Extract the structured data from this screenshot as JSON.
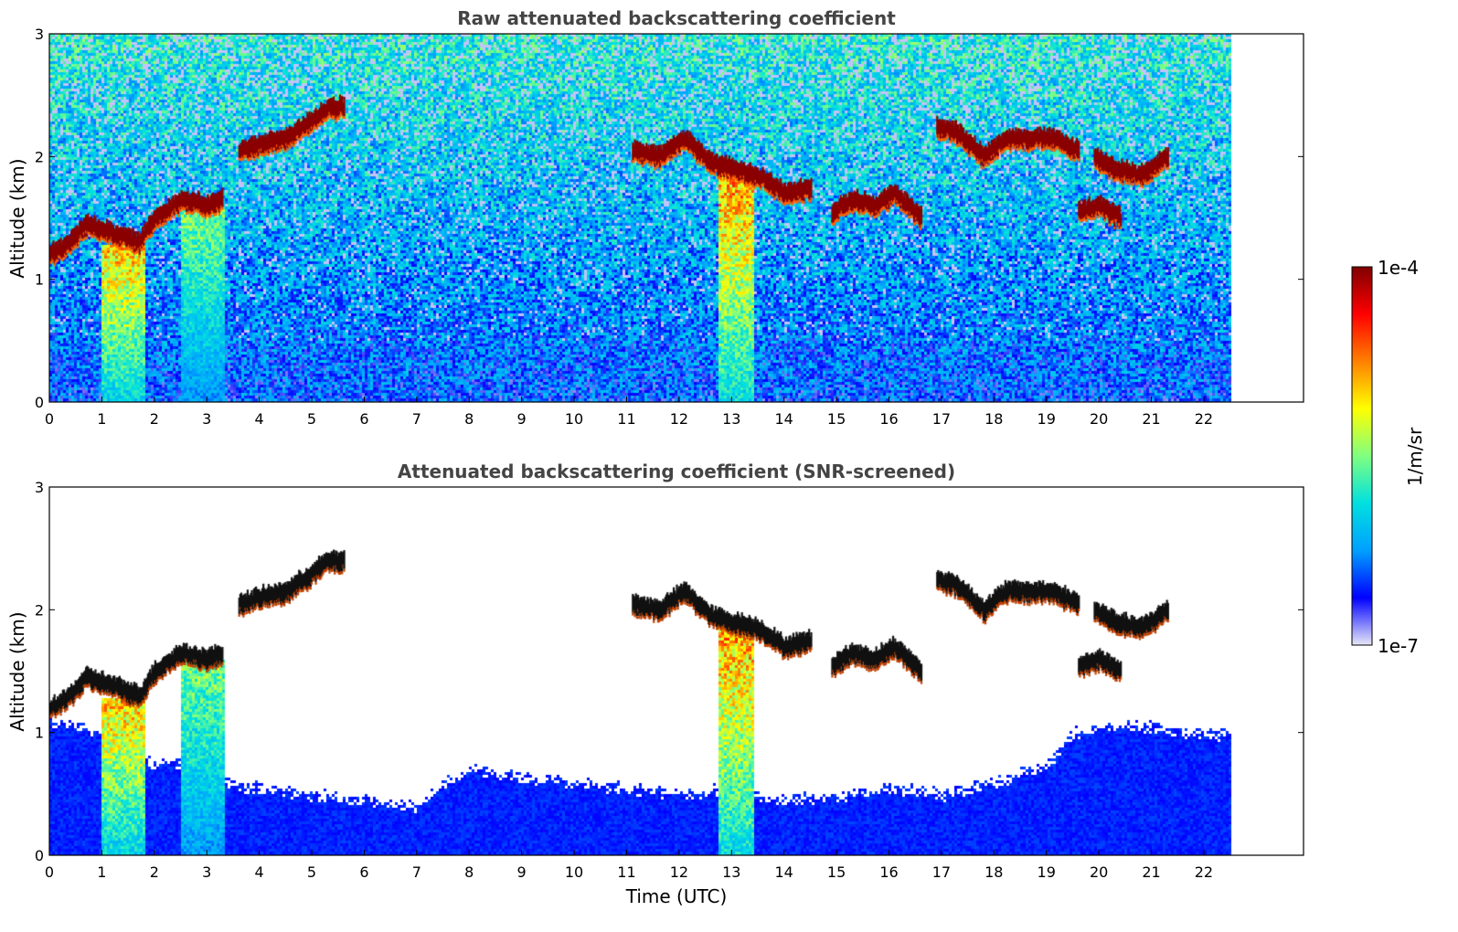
{
  "chart_data": [
    {
      "type": "heatmap",
      "title": "Raw attenuated backscattering coefficient",
      "xlabel": "",
      "ylabel": "Altitude (km)",
      "xlim": [
        0,
        23.9
      ],
      "ylim": [
        0,
        3
      ],
      "data_xrange": [
        0,
        22.5
      ],
      "xticks": [
        "0",
        "1",
        "2",
        "3",
        "4",
        "5",
        "6",
        "7",
        "8",
        "9",
        "10",
        "11",
        "12",
        "13",
        "14",
        "15",
        "16",
        "17",
        "18",
        "19",
        "20",
        "21",
        "22"
      ],
      "yticks": [
        "0",
        "1",
        "2",
        "3"
      ],
      "cloud_layers": [
        {
          "x": [
            0,
            0.3,
            0.7,
            1.2,
            1.7,
            2.0,
            2.5,
            3.0,
            3.3
          ],
          "y": [
            1.2,
            1.27,
            1.45,
            1.38,
            1.3,
            1.5,
            1.65,
            1.6,
            1.65
          ]
        },
        {
          "x": [
            3.6,
            4.0,
            4.5,
            5.0,
            5.3,
            5.6
          ],
          "y": [
            2.05,
            2.1,
            2.15,
            2.3,
            2.4,
            2.4
          ]
        },
        {
          "x": [
            11.1,
            11.6,
            12.1,
            12.6,
            13.0,
            13.5,
            14.0,
            14.5
          ],
          "y": [
            2.05,
            2.0,
            2.15,
            1.95,
            1.9,
            1.85,
            1.7,
            1.75
          ]
        },
        {
          "x": [
            14.9,
            15.3,
            15.7,
            16.1,
            16.6
          ],
          "y": [
            1.55,
            1.65,
            1.6,
            1.7,
            1.5
          ]
        },
        {
          "x": [
            16.9,
            17.3,
            17.8,
            18.2,
            18.7,
            19.1,
            19.6
          ],
          "y": [
            2.25,
            2.2,
            2.0,
            2.15,
            2.15,
            2.15,
            2.05
          ]
        },
        {
          "x": [
            19.9,
            20.3,
            20.8,
            21.3
          ],
          "y": [
            2.0,
            1.9,
            1.85,
            2.0
          ]
        },
        {
          "x": [
            19.6,
            20.0,
            20.4
          ],
          "y": [
            1.55,
            1.6,
            1.5
          ]
        }
      ],
      "plumes": [
        {
          "x0": 0.95,
          "x1": 1.8,
          "top": 1.3,
          "level": 0.75
        },
        {
          "x0": 12.7,
          "x1": 13.4,
          "top": 1.9,
          "level": 0.8
        },
        {
          "x0": 2.5,
          "x1": 3.3,
          "top": 1.6,
          "level": 0.55
        }
      ]
    },
    {
      "type": "heatmap",
      "title": "Attenuated backscattering coefficient (SNR-screened)",
      "xlabel": "Time (UTC)",
      "ylabel": "Altitude (km)",
      "xlim": [
        0,
        23.9
      ],
      "ylim": [
        0,
        3
      ],
      "data_xrange": [
        0,
        22.5
      ],
      "xticks": [
        "0",
        "1",
        "2",
        "3",
        "4",
        "5",
        "6",
        "7",
        "8",
        "9",
        "10",
        "11",
        "12",
        "13",
        "14",
        "15",
        "16",
        "17",
        "18",
        "19",
        "20",
        "21",
        "22"
      ],
      "yticks": [
        "0",
        "1",
        "2",
        "3"
      ],
      "boundary_layer_top": {
        "x": [
          0,
          1,
          2,
          3,
          3.3,
          4,
          5,
          6,
          7,
          7.5,
          8,
          9,
          10,
          11,
          12,
          13,
          14,
          15,
          16,
          17,
          18,
          19,
          19.5,
          20,
          21,
          22,
          22.5
        ],
        "y": [
          1.1,
          1.0,
          0.75,
          0.75,
          0.6,
          0.55,
          0.5,
          0.45,
          0.4,
          0.6,
          0.7,
          0.65,
          0.6,
          0.55,
          0.5,
          0.55,
          0.45,
          0.5,
          0.55,
          0.5,
          0.6,
          0.75,
          1.0,
          1.05,
          1.05,
          1.0,
          1.0
        ]
      }
    }
  ],
  "colorbar": {
    "label": "1/m/sr",
    "max_label": "1e-4",
    "min_label": "1e-7",
    "colors": [
      "#e8e8f8",
      "#0000ff",
      "#00a0ff",
      "#00e0e0",
      "#80ff80",
      "#ffff00",
      "#ff8000",
      "#ff0000",
      "#800000"
    ]
  }
}
